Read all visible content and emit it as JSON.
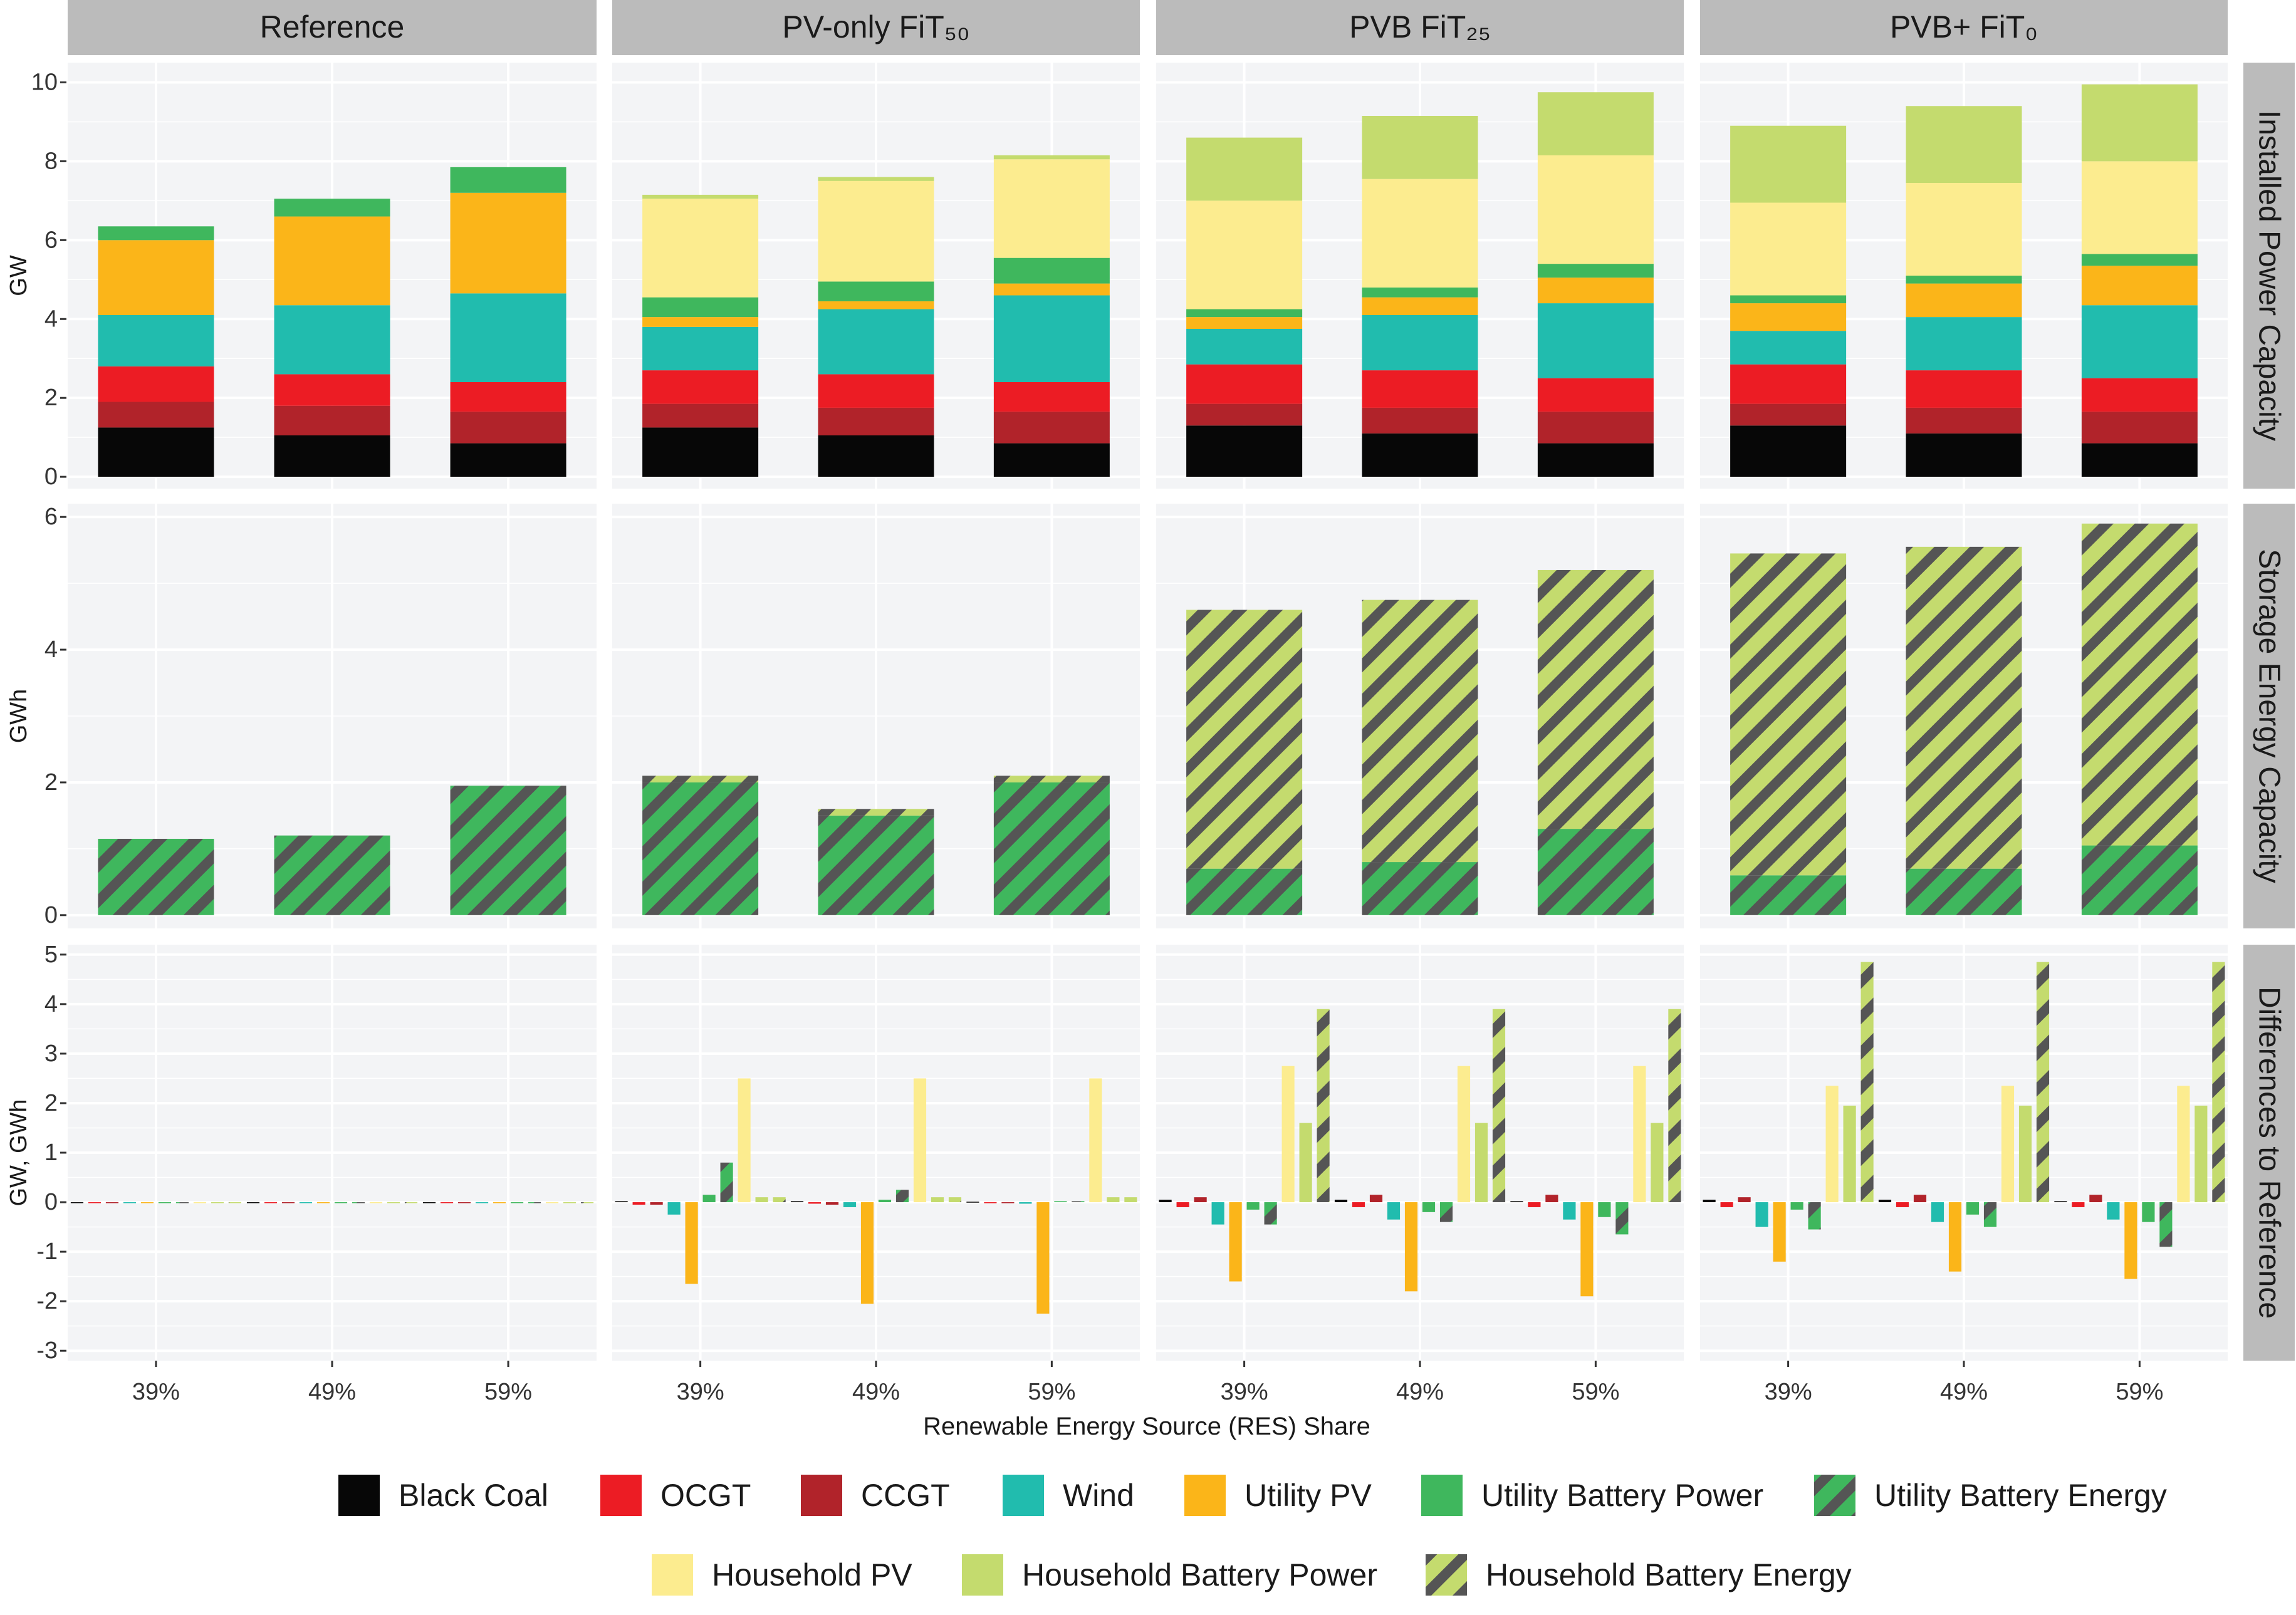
{
  "chart_data": {
    "type": "bar",
    "stacked": true,
    "xlabel": "Renewable Energy Source (RES) Share",
    "categories": [
      "39%",
      "49%",
      "59%"
    ],
    "panels": [
      "Reference",
      "PV-only FiT₅₀",
      "PVB FiT₂₅",
      "PVB+ FiT₀"
    ],
    "rows": [
      {
        "strip": "Installed Power Capacity",
        "ylabel": "GW",
        "ylim": [
          -0.3,
          10.5
        ],
        "ticks": [
          0,
          2,
          4,
          6,
          8,
          10
        ],
        "mode": "stack",
        "series": [
          "Black Coal",
          "CCGT",
          "OCGT",
          "Wind",
          "Utility PV",
          "Utility Battery Power",
          "Household PV",
          "Household Battery Power"
        ],
        "values": [
          [
            [
              1.25,
              0.65,
              0.9,
              1.3,
              1.9,
              0.35,
              0,
              0
            ],
            [
              1.05,
              0.75,
              0.8,
              1.75,
              2.25,
              0.45,
              0,
              0
            ],
            [
              0.85,
              0.8,
              0.75,
              2.25,
              2.55,
              0.65,
              0,
              0
            ]
          ],
          [
            [
              1.25,
              0.6,
              0.85,
              1.1,
              0.25,
              0.5,
              2.5,
              0.1
            ],
            [
              1.05,
              0.7,
              0.85,
              1.65,
              0.2,
              0.5,
              2.55,
              0.1
            ],
            [
              0.85,
              0.8,
              0.75,
              2.2,
              0.3,
              0.65,
              2.5,
              0.1
            ]
          ],
          [
            [
              1.3,
              0.55,
              1.0,
              0.9,
              0.3,
              0.2,
              2.75,
              1.6
            ],
            [
              1.1,
              0.65,
              0.95,
              1.4,
              0.45,
              0.25,
              2.75,
              1.6
            ],
            [
              0.85,
              0.8,
              0.85,
              1.9,
              0.65,
              0.35,
              2.75,
              1.6
            ]
          ],
          [
            [
              1.3,
              0.55,
              1.0,
              0.85,
              0.7,
              0.2,
              2.35,
              1.95
            ],
            [
              1.1,
              0.65,
              0.95,
              1.35,
              0.85,
              0.2,
              2.35,
              1.95
            ],
            [
              0.85,
              0.8,
              0.85,
              1.85,
              1.0,
              0.3,
              2.35,
              1.95
            ]
          ]
        ]
      },
      {
        "strip": "Storage Energy Capacity",
        "ylabel": "GWh",
        "ylim": [
          -0.2,
          6.2
        ],
        "ticks": [
          0,
          2,
          4,
          6
        ],
        "mode": "stack",
        "series": [
          "Utility Battery Energy",
          "Household Battery Energy"
        ],
        "values": [
          [
            [
              1.15,
              0
            ],
            [
              1.2,
              0
            ],
            [
              1.95,
              0
            ]
          ],
          [
            [
              2.0,
              0.1
            ],
            [
              1.5,
              0.1
            ],
            [
              2.0,
              0.1
            ]
          ],
          [
            [
              0.7,
              3.9
            ],
            [
              0.8,
              3.95
            ],
            [
              1.3,
              3.9
            ]
          ],
          [
            [
              0.6,
              4.85
            ],
            [
              0.7,
              4.85
            ],
            [
              1.05,
              4.85
            ]
          ]
        ]
      },
      {
        "strip": "Differences to Reference",
        "ylabel": "GW, GWh",
        "ylim": [
          -3.2,
          5.2
        ],
        "ticks": [
          -3,
          -2,
          -1,
          0,
          1,
          2,
          3,
          4,
          5
        ],
        "mode": "dodge",
        "series": [
          "Black Coal",
          "OCGT",
          "CCGT",
          "Wind",
          "Utility PV",
          "Utility Battery Power",
          "Utility Battery Energy",
          "Household PV",
          "Household Battery Power",
          "Household Battery Energy"
        ],
        "values": [
          [
            [
              0,
              0,
              0,
              0,
              0,
              0,
              0,
              0,
              0,
              0
            ],
            [
              0,
              0,
              0,
              0,
              0,
              0,
              0,
              0,
              0,
              0
            ],
            [
              0,
              0,
              0,
              0,
              0,
              0,
              0,
              0,
              0,
              0
            ]
          ],
          [
            [
              0.02,
              -0.05,
              -0.05,
              -0.25,
              -1.65,
              0.15,
              0.8,
              2.5,
              0.1,
              0.1
            ],
            [
              0.02,
              -0.03,
              -0.05,
              -0.1,
              -2.05,
              0.05,
              0.25,
              2.5,
              0.1,
              0.1
            ],
            [
              0.01,
              -0.02,
              -0.02,
              -0.03,
              -2.25,
              0.02,
              0.02,
              2.5,
              0.1,
              0.1
            ]
          ],
          [
            [
              0.05,
              -0.1,
              0.1,
              -0.45,
              -1.6,
              -0.15,
              -0.45,
              2.75,
              1.6,
              3.9
            ],
            [
              0.05,
              -0.1,
              0.15,
              -0.35,
              -1.8,
              -0.2,
              -0.4,
              2.75,
              1.6,
              3.9
            ],
            [
              0.02,
              -0.1,
              0.15,
              -0.35,
              -1.9,
              -0.3,
              -0.65,
              2.75,
              1.6,
              3.9
            ]
          ],
          [
            [
              0.05,
              -0.1,
              0.1,
              -0.5,
              -1.2,
              -0.15,
              -0.55,
              2.35,
              1.95,
              4.85
            ],
            [
              0.05,
              -0.1,
              0.15,
              -0.4,
              -1.4,
              -0.25,
              -0.5,
              2.35,
              1.95,
              4.85
            ],
            [
              0.02,
              -0.1,
              0.15,
              -0.35,
              -1.55,
              -0.4,
              -0.9,
              2.35,
              1.95,
              4.85
            ]
          ]
        ]
      }
    ],
    "legend": {
      "placement": "bottom",
      "entries": [
        "Black Coal",
        "OCGT",
        "CCGT",
        "Wind",
        "Utility PV",
        "Utility Battery Power",
        "Utility Battery Energy",
        "Household PV",
        "Household Battery Power",
        "Household Battery Energy"
      ]
    },
    "colors": {
      "Black Coal": "#070707",
      "OCGT": "#ec1c24",
      "CCGT": "#b1232a",
      "Wind": "#21bcae",
      "Utility PV": "#fbb519",
      "Utility Battery Power": "#3fb75d",
      "Household PV": "#fcec8f",
      "Household Battery Power": "#c4db6e"
    },
    "hatched": {
      "Utility Battery Energy": {
        "base": "#3fb75d",
        "stripe": "#555555"
      },
      "Household Battery Energy": {
        "base": "#c4db6e",
        "stripe": "#555555"
      }
    },
    "grid": true
  }
}
